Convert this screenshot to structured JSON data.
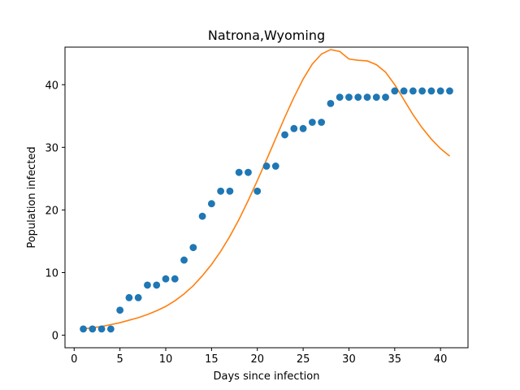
{
  "chart_data": {
    "type": "scatter",
    "title": "Natrona,Wyoming",
    "xlabel": "Days since infection",
    "ylabel": "Population infected",
    "xlim": [
      -1,
      43
    ],
    "ylim": [
      -2,
      46
    ],
    "xticks": [
      0,
      5,
      10,
      15,
      20,
      25,
      30,
      35,
      40
    ],
    "yticks": [
      0,
      10,
      20,
      30,
      40
    ],
    "grid": false,
    "colors": {
      "observed": "#1f77b4",
      "fit": "#ff7f0e"
    },
    "series": [
      {
        "type": "scatter",
        "x": [
          1,
          2,
          3,
          4,
          5,
          6,
          7,
          8,
          9,
          10,
          11,
          12,
          13,
          14,
          15,
          16,
          17,
          18,
          19,
          20,
          21,
          22,
          23,
          24,
          25,
          26,
          27,
          28,
          29,
          30,
          31,
          32,
          33,
          34,
          35,
          36,
          37,
          38,
          39,
          40,
          41
        ],
        "values": [
          1,
          1,
          1,
          1,
          4,
          6,
          6,
          8,
          8,
          9,
          9,
          12,
          14,
          19,
          21,
          23,
          23,
          26,
          26,
          23,
          27,
          27,
          32,
          33,
          33,
          34,
          34,
          37,
          38,
          38,
          38,
          38,
          38,
          38,
          39,
          39,
          39,
          39,
          39,
          39,
          39
        ]
      },
      {
        "type": "line",
        "x": [
          1,
          2,
          3,
          4,
          5,
          6,
          7,
          8,
          9,
          10,
          11,
          12,
          13,
          14,
          15,
          16,
          17,
          18,
          19,
          20,
          21,
          22,
          23,
          24,
          25,
          26,
          27,
          28,
          29,
          30,
          31,
          32,
          33,
          34,
          35,
          36,
          37,
          38,
          39,
          40,
          41
        ],
        "values": [
          1.0,
          1.2,
          1.4,
          1.7,
          2.0,
          2.4,
          2.8,
          3.3,
          3.9,
          4.6,
          5.5,
          6.6,
          7.9,
          9.5,
          11.3,
          13.4,
          15.8,
          18.5,
          21.5,
          24.7,
          28.0,
          31.4,
          34.8,
          38.0,
          40.9,
          43.3,
          44.9,
          45.6,
          45.3,
          44.1,
          43.9,
          43.8,
          43.2,
          42.0,
          40.0,
          37.6,
          35.2,
          33.1,
          31.3,
          29.8,
          28.6
        ]
      }
    ]
  }
}
